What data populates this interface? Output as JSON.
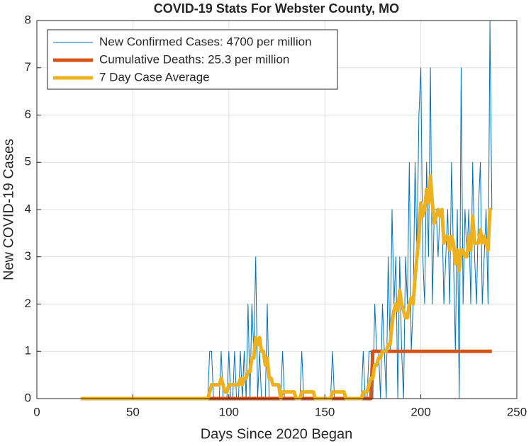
{
  "chart_data": {
    "type": "line",
    "title": "COVID-19 Stats For Webster County, MO",
    "xlabel": "Days Since 2020 Began",
    "ylabel": "New COVID-19 Cases",
    "x": [
      23,
      24,
      25,
      26,
      27,
      28,
      29,
      30,
      31,
      32,
      33,
      34,
      35,
      36,
      37,
      38,
      39,
      40,
      41,
      42,
      43,
      44,
      45,
      46,
      47,
      48,
      49,
      50,
      51,
      52,
      53,
      54,
      55,
      56,
      57,
      58,
      59,
      60,
      61,
      62,
      63,
      64,
      65,
      66,
      67,
      68,
      69,
      70,
      71,
      72,
      73,
      74,
      75,
      76,
      77,
      78,
      79,
      80,
      81,
      82,
      83,
      84,
      85,
      86,
      87,
      88,
      89,
      90,
      91,
      92,
      93,
      94,
      95,
      96,
      97,
      98,
      99,
      100,
      101,
      102,
      103,
      104,
      105,
      106,
      107,
      108,
      109,
      110,
      111,
      112,
      113,
      114,
      115,
      116,
      117,
      118,
      119,
      120,
      121,
      122,
      123,
      124,
      125,
      126,
      127,
      128,
      129,
      130,
      131,
      132,
      133,
      134,
      135,
      136,
      137,
      138,
      139,
      140,
      141,
      142,
      143,
      144,
      145,
      146,
      147,
      148,
      149,
      150,
      151,
      152,
      153,
      154,
      155,
      156,
      157,
      158,
      159,
      160,
      161,
      162,
      163,
      164,
      165,
      166,
      167,
      168,
      169,
      170,
      171,
      172,
      173,
      174,
      175,
      176,
      177,
      178,
      179,
      180,
      181,
      182,
      183,
      184,
      185,
      186,
      187,
      188,
      189,
      190,
      191,
      192,
      193,
      194,
      195,
      196,
      197,
      198,
      199,
      200,
      201,
      202,
      203,
      204,
      205,
      206,
      207,
      208,
      209,
      210,
      211,
      212,
      213,
      214,
      215,
      216,
      217,
      218,
      219,
      220,
      221,
      222,
      223,
      224,
      225,
      226,
      227,
      228,
      229,
      230,
      231,
      232,
      233,
      234,
      235,
      236,
      237
    ],
    "series": [
      {
        "name": "New Confirmed Cases: 4700 per million",
        "color": "#0072BD",
        "values": [
          0,
          0,
          0,
          0,
          0,
          0,
          0,
          0,
          0,
          0,
          0,
          0,
          0,
          0,
          0,
          0,
          0,
          0,
          0,
          0,
          0,
          0,
          0,
          0,
          0,
          0,
          0,
          0,
          0,
          0,
          0,
          0,
          0,
          0,
          0,
          0,
          0,
          0,
          0,
          0,
          0,
          0,
          0,
          0,
          0,
          0,
          0,
          0,
          0,
          0,
          0,
          0,
          0,
          0,
          0,
          0,
          0,
          0,
          0,
          0,
          0,
          0,
          0,
          0,
          0,
          0,
          0,
          1,
          1,
          0,
          0,
          0,
          0,
          1,
          0,
          0,
          0,
          1,
          0,
          0,
          1,
          0,
          0,
          1,
          0,
          1,
          0,
          2,
          0,
          2,
          1,
          3,
          0,
          1,
          0,
          0,
          0,
          2,
          0,
          0,
          0,
          0,
          0,
          0,
          0,
          1,
          0,
          0,
          0,
          0,
          0,
          0,
          0,
          0,
          0,
          1,
          0,
          0,
          0,
          0,
          0,
          0,
          0,
          0,
          0,
          0,
          0,
          0,
          0,
          0,
          0,
          1,
          0,
          0,
          0,
          0,
          0,
          0,
          0,
          0,
          0,
          0,
          0,
          0,
          0,
          0,
          0,
          1,
          0,
          0,
          1,
          1,
          0,
          2,
          1,
          1,
          0,
          2,
          1,
          0,
          3,
          1,
          4,
          2,
          3,
          0,
          3,
          1,
          0,
          3,
          2,
          5,
          1,
          2,
          5,
          3,
          6,
          7,
          3,
          2,
          5,
          3,
          7,
          2,
          4,
          4,
          3,
          4,
          4,
          2,
          3,
          4,
          2,
          5,
          3,
          1,
          4,
          0,
          7,
          2,
          4,
          3,
          4,
          2,
          5,
          3,
          2,
          4,
          5,
          2,
          3,
          4,
          2,
          8,
          4
        ]
      },
      {
        "name": "Cumulative Deaths: 25.3 per million",
        "color": "#D95319",
        "values": [
          0,
          0,
          0,
          0,
          0,
          0,
          0,
          0,
          0,
          0,
          0,
          0,
          0,
          0,
          0,
          0,
          0,
          0,
          0,
          0,
          0,
          0,
          0,
          0,
          0,
          0,
          0,
          0,
          0,
          0,
          0,
          0,
          0,
          0,
          0,
          0,
          0,
          0,
          0,
          0,
          0,
          0,
          0,
          0,
          0,
          0,
          0,
          0,
          0,
          0,
          0,
          0,
          0,
          0,
          0,
          0,
          0,
          0,
          0,
          0,
          0,
          0,
          0,
          0,
          0,
          0,
          0,
          0,
          0,
          0,
          0,
          0,
          0,
          0,
          0,
          0,
          0,
          0,
          0,
          0,
          0,
          0,
          0,
          0,
          0,
          0,
          0,
          0,
          0,
          0,
          0,
          0,
          0,
          0,
          0,
          0,
          0,
          0,
          0,
          0,
          0,
          0,
          0,
          0,
          0,
          0,
          0,
          0,
          0,
          0,
          0,
          0,
          0,
          0,
          0,
          0,
          0,
          0,
          0,
          0,
          0,
          0,
          0,
          0,
          0,
          0,
          0,
          0,
          0,
          0,
          0,
          0,
          0,
          0,
          0,
          0,
          0,
          0,
          0,
          0,
          0,
          0,
          0,
          0,
          0,
          0,
          0,
          0,
          0,
          0,
          0,
          0,
          1,
          1,
          1,
          1,
          1,
          1,
          1,
          1,
          1,
          1,
          1,
          1,
          1,
          1,
          1,
          1,
          1,
          1,
          1,
          1,
          1,
          1,
          1,
          1,
          1,
          1,
          1,
          1,
          1,
          1,
          1,
          1,
          1,
          1,
          1,
          1,
          1,
          1,
          1,
          1,
          1,
          1,
          1,
          1,
          1,
          1,
          1,
          1,
          1,
          1,
          1,
          1,
          1,
          1,
          1,
          1,
          1,
          1,
          1,
          1,
          1,
          1,
          1
        ]
      },
      {
        "name": "7 Day Case Average",
        "color": "#EDB120",
        "values": [
          0,
          0,
          0,
          0,
          0,
          0,
          0,
          0,
          0,
          0,
          0,
          0,
          0,
          0,
          0,
          0,
          0,
          0,
          0,
          0,
          0,
          0,
          0,
          0,
          0,
          0,
          0,
          0,
          0,
          0,
          0,
          0,
          0,
          0,
          0,
          0,
          0,
          0,
          0,
          0,
          0,
          0,
          0,
          0,
          0,
          0,
          0,
          0,
          0,
          0,
          0,
          0,
          0,
          0,
          0,
          0,
          0,
          0,
          0,
          0,
          0,
          0,
          0,
          0,
          0,
          0,
          0,
          0.14,
          0.29,
          0.29,
          0.29,
          0.29,
          0.29,
          0.43,
          0.29,
          0.14,
          0.14,
          0.29,
          0.29,
          0.29,
          0.29,
          0.29,
          0.29,
          0.43,
          0.29,
          0.43,
          0.43,
          0.57,
          0.57,
          0.86,
          0.86,
          1.29,
          1.14,
          1.29,
          1,
          1,
          0.71,
          0.86,
          0.43,
          0.43,
          0.29,
          0.29,
          0.29,
          0.29,
          0,
          0.14,
          0.14,
          0.14,
          0.14,
          0.14,
          0.14,
          0.14,
          0,
          0,
          0,
          0.14,
          0.14,
          0.14,
          0.14,
          0.14,
          0.14,
          0.14,
          0,
          0,
          0,
          0,
          0,
          0,
          0,
          0,
          0,
          0.14,
          0.14,
          0.14,
          0.14,
          0.14,
          0.14,
          0.14,
          0,
          0,
          0,
          0,
          0,
          0,
          0,
          0,
          0,
          0.14,
          0.14,
          0.14,
          0.29,
          0.43,
          0.43,
          0.71,
          0.71,
          0.86,
          0.86,
          1,
          1,
          1,
          1.14,
          1.14,
          1.57,
          1.86,
          2,
          1.86,
          2.29,
          2,
          1.86,
          1.71,
          1.71,
          2,
          2.14,
          2,
          2.57,
          3,
          3.43,
          4.14,
          3.86,
          4,
          4.43,
          4.14,
          4.71,
          4.14,
          3.71,
          3.86,
          4,
          3.86,
          4,
          3.29,
          3.43,
          3.43,
          3.14,
          3.43,
          3.29,
          2.86,
          3.14,
          2.71,
          3.14,
          3.14,
          3,
          3,
          3.43,
          3.14,
          3.86,
          3.29,
          3.29,
          3.29,
          3.57,
          3.29,
          3.43,
          3.29,
          3.14,
          4,
          4
        ]
      }
    ],
    "xlim": [
      0,
      250
    ],
    "ylim": [
      0,
      8
    ],
    "xticks": [
      0,
      50,
      100,
      150,
      200,
      250
    ],
    "yticks": [
      0,
      1,
      2,
      3,
      4,
      5,
      6,
      7,
      8
    ],
    "grid": true,
    "legend": "upper left"
  }
}
